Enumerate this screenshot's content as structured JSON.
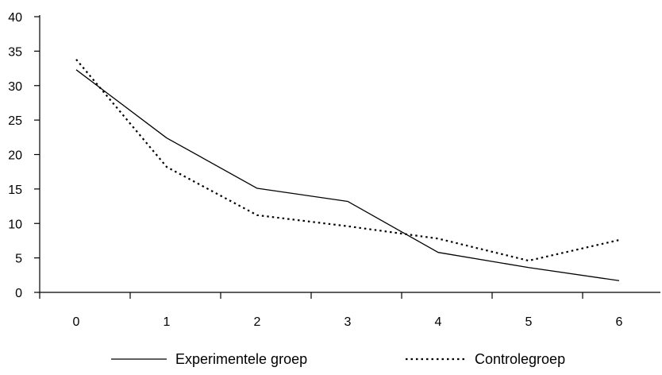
{
  "chart_data": {
    "type": "line",
    "title": "",
    "xlabel": "",
    "ylabel": "",
    "x": [
      0,
      1,
      2,
      3,
      4,
      5,
      6
    ],
    "x_ticks": [
      "0",
      "1",
      "2",
      "3",
      "4",
      "5",
      "6"
    ],
    "y_ticks": [
      "0",
      "5",
      "10",
      "15",
      "20",
      "25",
      "30",
      "35",
      "40"
    ],
    "ylim": [
      0,
      40
    ],
    "grid": false,
    "legend_position": "bottom",
    "series": [
      {
        "name": "Experimentele groep",
        "style": "solid",
        "color": "#000000",
        "values": [
          32.3,
          22.4,
          15.1,
          13.2,
          5.8,
          3.6,
          1.7
        ]
      },
      {
        "name": "Controlegroep",
        "style": "dotted",
        "color": "#000000",
        "values": [
          33.8,
          18.2,
          11.2,
          9.6,
          7.8,
          4.6,
          7.6
        ]
      }
    ]
  }
}
